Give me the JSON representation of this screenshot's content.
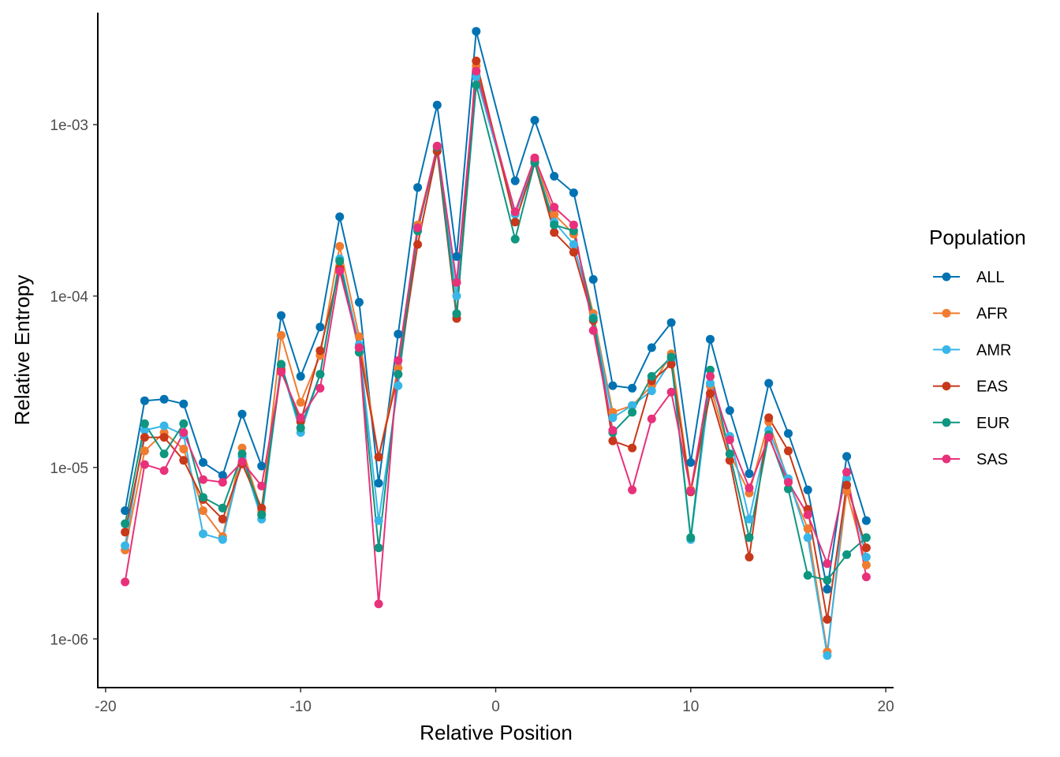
{
  "chart_data": {
    "type": "line",
    "xlabel": "Relative Position",
    "ylabel": "Relative Entropy",
    "yscale": "log10",
    "xlim": [
      -20.4,
      20.4
    ],
    "ylim": [
      5.2e-07,
      0.0045
    ],
    "x_ticks": [
      -20,
      -10,
      0,
      10,
      20
    ],
    "x_tick_labels": [
      "-20",
      "-10",
      "0",
      "10",
      "20"
    ],
    "y_ticks": [
      1e-06,
      1e-05,
      0.0001,
      0.001
    ],
    "y_tick_labels": [
      "1e-06",
      "1e-05",
      "1e-04",
      "1e-03"
    ],
    "grid": false,
    "legend": {
      "title": "Population",
      "placement": "right"
    },
    "x": [
      -19,
      -18,
      -17,
      -16,
      -15,
      -14,
      -13,
      -12,
      -11,
      -10,
      -9,
      -8,
      -7,
      -6,
      -5,
      -4,
      -3,
      -2,
      -1,
      1,
      2,
      3,
      4,
      5,
      6,
      7,
      8,
      9,
      10,
      11,
      12,
      13,
      14,
      15,
      16,
      17,
      18,
      19
    ],
    "series": [
      {
        "name": "ALL",
        "color": "#0072B2",
        "values": [
          5.6e-06,
          2.45e-05,
          2.5e-05,
          2.35e-05,
          1.07e-05,
          9e-06,
          2.05e-05,
          1.02e-05,
          7.7e-05,
          3.4e-05,
          6.6e-05,
          0.00029,
          9.2e-05,
          8.1e-06,
          6e-05,
          0.00043,
          0.0013,
          0.00017,
          0.0035,
          0.00047,
          0.00106,
          0.0005,
          0.0004,
          0.000125,
          3e-05,
          2.9e-05,
          5e-05,
          7e-05,
          1.07e-05,
          5.6e-05,
          2.15e-05,
          9.2e-06,
          3.1e-05,
          1.58e-05,
          7.4e-06,
          1.95e-06,
          1.16e-05,
          4.9e-06
        ]
      },
      {
        "name": "AFR",
        "color": "#F07C30",
        "values": [
          3.3e-06,
          1.25e-05,
          1.6e-05,
          1.28e-05,
          5.6e-06,
          3.95e-06,
          1.3e-05,
          5.5e-06,
          5.9e-05,
          2.4e-05,
          4.5e-05,
          0.000195,
          5.8e-05,
          1.15e-05,
          3.8e-05,
          0.00026,
          0.00073,
          7.8e-05,
          0.0022,
          0.0003,
          0.00062,
          0.0003,
          0.00023,
          7.9e-05,
          2.1e-05,
          2.3e-05,
          3e-05,
          4.6e-05,
          7.4e-06,
          3e-05,
          1.2e-05,
          7.1e-06,
          1.85e-05,
          8.3e-06,
          4.4e-06,
          8.4e-07,
          7.3e-06,
          2.7e-06
        ]
      },
      {
        "name": "AMR",
        "color": "#38B6E8",
        "values": [
          3.5e-06,
          1.65e-05,
          1.75e-05,
          1.55e-05,
          4.1e-06,
          3.8e-06,
          1.15e-05,
          5e-06,
          3.9e-05,
          1.6e-05,
          3.5e-05,
          0.000165,
          5.2e-05,
          4.9e-06,
          3e-05,
          0.00025,
          0.0007,
          0.0001,
          0.0019,
          0.0003,
          0.0006,
          0.00027,
          0.0002,
          7.5e-05,
          1.95e-05,
          2.3e-05,
          2.8e-05,
          4.2e-05,
          3.8e-06,
          3.1e-05,
          1.52e-05,
          5e-06,
          1.65e-05,
          8.6e-06,
          3.9e-06,
          8e-07,
          8.6e-06,
          3e-06
        ]
      },
      {
        "name": "EAS",
        "color": "#C8381A",
        "values": [
          4.2e-06,
          1.5e-05,
          1.5e-05,
          1.1e-05,
          6.5e-06,
          5e-06,
          1.05e-05,
          5.8e-06,
          3.7e-05,
          1.85e-05,
          4.8e-05,
          0.000145,
          5e-05,
          1.15e-05,
          3.5e-05,
          0.0002,
          0.0007,
          7.4e-05,
          0.00235,
          0.00027,
          0.0006,
          0.000235,
          0.00018,
          7.2e-05,
          1.43e-05,
          1.3e-05,
          3.2e-05,
          4e-05,
          7.2e-06,
          2.7e-05,
          1.1e-05,
          3e-06,
          1.95e-05,
          1.25e-05,
          5.7e-06,
          1.3e-06,
          7.9e-06,
          3.4e-06
        ]
      },
      {
        "name": "EUR",
        "color": "#0E9680",
        "values": [
          4.7e-06,
          1.8e-05,
          1.2e-05,
          1.8e-05,
          6.7e-06,
          5.8e-06,
          1.2e-05,
          5.3e-06,
          4e-05,
          1.7e-05,
          3.5e-05,
          0.00016,
          4.7e-05,
          3.4e-06,
          3.5e-05,
          0.00024,
          0.00074,
          7.9e-05,
          0.0017,
          0.000215,
          0.0006,
          0.00026,
          0.00024,
          7.4e-05,
          1.6e-05,
          2.1e-05,
          3.4e-05,
          4.4e-05,
          3.9e-06,
          3.7e-05,
          1.2e-05,
          3.9e-06,
          1.55e-05,
          7.5e-06,
          2.35e-06,
          2.2e-06,
          3.1e-06,
          3.9e-06
        ]
      },
      {
        "name": "SAS",
        "color": "#E8317A",
        "values": [
          2.15e-06,
          1.04e-05,
          9.6e-06,
          1.6e-05,
          8.5e-06,
          8.2e-06,
          1.08e-05,
          7.8e-06,
          3.6e-05,
          1.95e-05,
          2.9e-05,
          0.00014,
          5e-05,
          1.6e-06,
          4.2e-05,
          0.00025,
          0.00075,
          0.00012,
          0.00205,
          0.00031,
          0.00064,
          0.00033,
          0.00026,
          6.3e-05,
          1.65e-05,
          7.4e-06,
          1.92e-05,
          2.75e-05,
          7.3e-06,
          3.4e-05,
          1.45e-05,
          7.6e-06,
          1.5e-05,
          8.2e-06,
          5.3e-06,
          2.75e-06,
          9.4e-06,
          2.3e-06
        ]
      }
    ]
  }
}
